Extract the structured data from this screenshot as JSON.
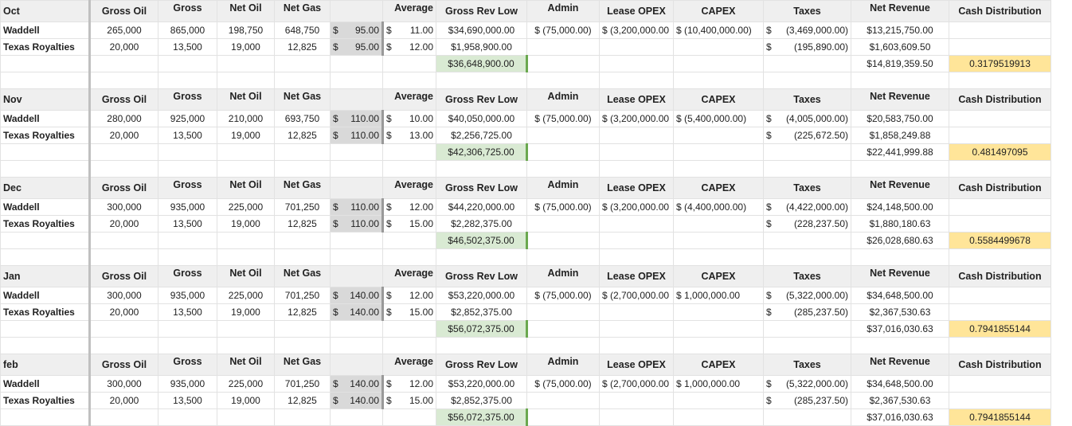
{
  "headers": {
    "gross_oil": "Gross Oil",
    "gross": "Gross",
    "net_oil": "Net Oil",
    "net_gas": "Net Gas",
    "average": "Average",
    "gross_rev_low": "Gross Rev Low",
    "admin": "Admin",
    "lease_opex": "Lease OPEX",
    "capex": "CAPEX",
    "taxes": "Taxes",
    "net_revenue": "Net Revenue",
    "cash_distribution": "Cash Distribution"
  },
  "blocks": [
    {
      "month": "Oct",
      "rows": [
        {
          "name": "Waddell",
          "gross_oil": "265,000",
          "gross": "865,000",
          "net_oil": "198,750",
          "net_gas": "648,750",
          "price_sym": "$",
          "price": "95.00",
          "avg_sym": "$",
          "avg": "11.00",
          "gross_rev": "$34,690,000.00",
          "admin": "$ (75,000.00)",
          "lease_opex": "$ (3,200,000.00",
          "capex": "$ (10,400,000.00)",
          "tax_sym": "$",
          "taxes": "(3,469,000.00)",
          "net_rev": "$13,215,750.00"
        },
        {
          "name": "Texas Royalties",
          "gross_oil": "20,000",
          "gross": "13,500",
          "net_oil": "19,000",
          "net_gas": "12,825",
          "price_sym": "$",
          "price": "95.00",
          "avg_sym": "$",
          "avg": "12.00",
          "gross_rev": "$1,958,900.00",
          "admin": "",
          "lease_opex": "",
          "capex": "",
          "tax_sym": "$",
          "taxes": "(195,890.00)",
          "net_rev": "$1,603,609.50"
        }
      ],
      "total_gross_rev": "$36,648,900.00",
      "total_net_rev": "$14,819,359.50",
      "cash_distribution": "0.3179519913"
    },
    {
      "month": "Nov",
      "rows": [
        {
          "name": "Waddell",
          "gross_oil": "280,000",
          "gross": "925,000",
          "net_oil": "210,000",
          "net_gas": "693,750",
          "price_sym": "$",
          "price": "110.00",
          "avg_sym": "$",
          "avg": "10.00",
          "gross_rev": "$40,050,000.00",
          "admin": "$ (75,000.00)",
          "lease_opex": "$ (3,200,000.00",
          "capex": "$   (5,400,000.00)",
          "tax_sym": "$",
          "taxes": "(4,005,000.00)",
          "net_rev": "$20,583,750.00"
        },
        {
          "name": "Texas Royalties",
          "gross_oil": "20,000",
          "gross": "13,500",
          "net_oil": "19,000",
          "net_gas": "12,825",
          "price_sym": "$",
          "price": "110.00",
          "avg_sym": "$",
          "avg": "13.00",
          "gross_rev": "$2,256,725.00",
          "admin": "",
          "lease_opex": "",
          "capex": "",
          "tax_sym": "$",
          "taxes": "(225,672.50)",
          "net_rev": "$1,858,249.88"
        }
      ],
      "total_gross_rev": "$42,306,725.00",
      "total_net_rev": "$22,441,999.88",
      "cash_distribution": "0.481497095"
    },
    {
      "month": "Dec",
      "rows": [
        {
          "name": "Waddell",
          "gross_oil": "300,000",
          "gross": "935,000",
          "net_oil": "225,000",
          "net_gas": "701,250",
          "price_sym": "$",
          "price": "110.00",
          "avg_sym": "$",
          "avg": "12.00",
          "gross_rev": "$44,220,000.00",
          "admin": "$ (75,000.00)",
          "lease_opex": "$ (3,200,000.00",
          "capex": "$   (4,400,000.00)",
          "tax_sym": "$",
          "taxes": "(4,422,000.00)",
          "net_rev": "$24,148,500.00"
        },
        {
          "name": "Texas Royalties",
          "gross_oil": "20,000",
          "gross": "13,500",
          "net_oil": "19,000",
          "net_gas": "12,825",
          "price_sym": "$",
          "price": "110.00",
          "avg_sym": "$",
          "avg": "15.00",
          "gross_rev": "$2,282,375.00",
          "admin": "",
          "lease_opex": "",
          "capex": "",
          "tax_sym": "$",
          "taxes": "(228,237.50)",
          "net_rev": "$1,880,180.63"
        }
      ],
      "total_gross_rev": "$46,502,375.00",
      "total_net_rev": "$26,028,680.63",
      "cash_distribution": "0.5584499678"
    },
    {
      "month": "Jan",
      "rows": [
        {
          "name": "Waddell",
          "gross_oil": "300,000",
          "gross": "935,000",
          "net_oil": "225,000",
          "net_gas": "701,250",
          "price_sym": "$",
          "price": "140.00",
          "avg_sym": "$",
          "avg": "12.00",
          "gross_rev": "$53,220,000.00",
          "admin": "$ (75,000.00)",
          "lease_opex": "$ (2,700,000.00",
          "capex": "$      1,000,000.00",
          "tax_sym": "$",
          "taxes": "(5,322,000.00)",
          "net_rev": "$34,648,500.00"
        },
        {
          "name": "Texas Royalties",
          "gross_oil": "20,000",
          "gross": "13,500",
          "net_oil": "19,000",
          "net_gas": "12,825",
          "price_sym": "$",
          "price": "140.00",
          "avg_sym": "$",
          "avg": "15.00",
          "gross_rev": "$2,852,375.00",
          "admin": "",
          "lease_opex": "",
          "capex": "",
          "tax_sym": "$",
          "taxes": "(285,237.50)",
          "net_rev": "$2,367,530.63"
        }
      ],
      "total_gross_rev": "$56,072,375.00",
      "total_net_rev": "$37,016,030.63",
      "cash_distribution": "0.7941855144"
    },
    {
      "month": "feb",
      "rows": [
        {
          "name": "Waddell",
          "gross_oil": "300,000",
          "gross": "935,000",
          "net_oil": "225,000",
          "net_gas": "701,250",
          "price_sym": "$",
          "price": "140.00",
          "avg_sym": "$",
          "avg": "12.00",
          "gross_rev": "$53,220,000.00",
          "admin": "$ (75,000.00)",
          "lease_opex": "$ (2,700,000.00",
          "capex": "$      1,000,000.00",
          "tax_sym": "$",
          "taxes": "(5,322,000.00)",
          "net_rev": "$34,648,500.00"
        },
        {
          "name": "Texas Royalties",
          "gross_oil": "20,000",
          "gross": "13,500",
          "net_oil": "19,000",
          "net_gas": "12,825",
          "price_sym": "$",
          "price": "140.00",
          "avg_sym": "$",
          "avg": "15.00",
          "gross_rev": "$2,852,375.00",
          "admin": "",
          "lease_opex": "",
          "capex": "",
          "tax_sym": "$",
          "taxes": "(285,237.50)",
          "net_rev": "$2,367,530.63"
        }
      ],
      "total_gross_rev": "$56,072,375.00",
      "total_net_rev": "$37,016,030.63",
      "cash_distribution": "0.7941855144"
    }
  ]
}
